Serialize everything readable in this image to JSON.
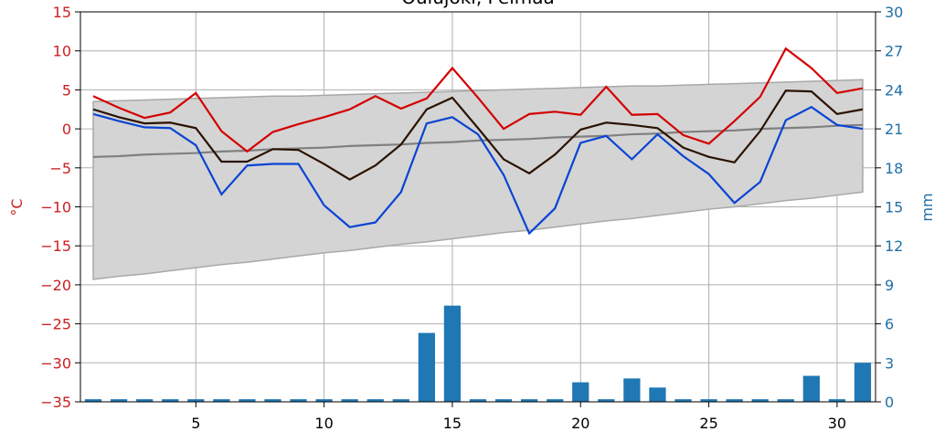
{
  "chart_data": {
    "type": "combo",
    "title": "Oulujoki, Pelmaa",
    "ylabel": "°C",
    "y2label": "mm",
    "x": [
      1,
      2,
      3,
      4,
      5,
      6,
      7,
      8,
      9,
      10,
      11,
      12,
      13,
      14,
      15,
      16,
      17,
      18,
      19,
      20,
      21,
      22,
      23,
      24,
      25,
      26,
      27,
      28,
      29,
      30,
      31
    ],
    "xlim": [
      0.5,
      31.5
    ],
    "xticks": [
      5,
      10,
      15,
      20,
      25,
      30
    ],
    "ylim": [
      -35,
      15
    ],
    "yticks": [
      {
        "value": -35,
        "label": "−35"
      },
      {
        "value": -30,
        "label": "−30"
      },
      {
        "value": -25,
        "label": "−25"
      },
      {
        "value": -20,
        "label": "−20"
      },
      {
        "value": -15,
        "label": "−15"
      },
      {
        "value": -10,
        "label": "−10"
      },
      {
        "value": -5,
        "label": "−5"
      },
      0,
      5,
      10,
      15
    ],
    "y2lim": [
      0,
      30
    ],
    "y2ticks": [
      0,
      3,
      6,
      9,
      12,
      15,
      18,
      21,
      24,
      27,
      30
    ],
    "grid": true,
    "ycolor": "#cc1f1f",
    "y2color": "#1f6fa8",
    "series": [
      {
        "type": "band",
        "color": "#d4d4d4",
        "low": [
          -19.3,
          -18.9,
          -18.6,
          -18.2,
          -17.8,
          -17.4,
          -17.1,
          -16.7,
          -16.3,
          -15.9,
          -15.6,
          -15.2,
          -14.8,
          -14.5,
          -14.1,
          -13.7,
          -13.3,
          -13.0,
          -12.6,
          -12.2,
          -11.8,
          -11.5,
          -11.1,
          -10.7,
          -10.3,
          -10.0,
          -9.6,
          -9.2,
          -8.9,
          -8.5,
          -8.1
        ],
        "values": [
          3.5,
          3.6,
          3.7,
          3.8,
          3.9,
          4.0,
          4.1,
          4.2,
          4.2,
          4.3,
          4.4,
          4.5,
          4.6,
          4.7,
          4.8,
          4.9,
          5.0,
          5.1,
          5.2,
          5.3,
          5.4,
          5.5,
          5.5,
          5.6,
          5.7,
          5.8,
          5.9,
          6.0,
          6.1,
          6.2,
          6.3
        ]
      },
      {
        "type": "line",
        "color": "#808080",
        "values": [
          -3.6,
          -3.5,
          -3.3,
          -3.2,
          -3.1,
          -2.9,
          -2.8,
          -2.6,
          -2.5,
          -2.4,
          -2.2,
          -2.1,
          -2.0,
          -1.8,
          -1.7,
          -1.5,
          -1.4,
          -1.3,
          -1.1,
          -1.0,
          -0.9,
          -0.7,
          -0.6,
          -0.4,
          -0.3,
          -0.2,
          0.0,
          0.1,
          0.2,
          0.4,
          0.5
        ]
      },
      {
        "type": "line",
        "color": "#d40000",
        "values": [
          4.2,
          2.7,
          1.4,
          2.1,
          4.6,
          -0.3,
          -2.9,
          -0.4,
          0.6,
          1.5,
          2.5,
          4.2,
          2.6,
          3.9,
          7.8,
          4.0,
          0.0,
          1.9,
          2.2,
          1.8,
          5.4,
          1.8,
          1.9,
          -0.8,
          -1.9,
          1.0,
          4.1,
          10.3,
          7.8,
          4.6,
          5.2
        ]
      },
      {
        "type": "line",
        "color": "#2b1200",
        "values": [
          2.5,
          1.5,
          0.7,
          0.8,
          0.1,
          -4.2,
          -4.2,
          -2.6,
          -2.7,
          -4.5,
          -6.5,
          -4.7,
          -2.0,
          2.5,
          4.0,
          0.1,
          -3.9,
          -5.7,
          -3.3,
          -0.1,
          0.8,
          0.5,
          0.1,
          -2.4,
          -3.6,
          -4.3,
          -0.3,
          4.9,
          4.8,
          1.9,
          2.5
        ]
      },
      {
        "type": "line",
        "color": "#0a44d4",
        "values": [
          1.9,
          1.0,
          0.2,
          0.1,
          -2.1,
          -8.4,
          -4.7,
          -4.5,
          -4.5,
          -9.8,
          -12.6,
          -12.0,
          -8.1,
          0.7,
          1.5,
          -0.7,
          -5.9,
          -13.4,
          -10.2,
          -1.8,
          -0.9,
          -3.9,
          -0.7,
          -3.5,
          -5.8,
          -9.5,
          -6.8,
          1.1,
          2.8,
          0.5,
          0.0
        ]
      },
      {
        "type": "bar",
        "axis": "y2",
        "color": "#1f77b4",
        "values": [
          0.2,
          0.2,
          0.2,
          0.2,
          0.2,
          0.2,
          0.2,
          0.2,
          0.2,
          0.2,
          0.2,
          0.2,
          0.2,
          5.3,
          7.4,
          0.2,
          0.2,
          0.2,
          0.2,
          1.5,
          0.2,
          1.8,
          1.1,
          0.2,
          0.2,
          0.2,
          0.2,
          0.2,
          2.0,
          0.2,
          3.0
        ]
      }
    ]
  }
}
